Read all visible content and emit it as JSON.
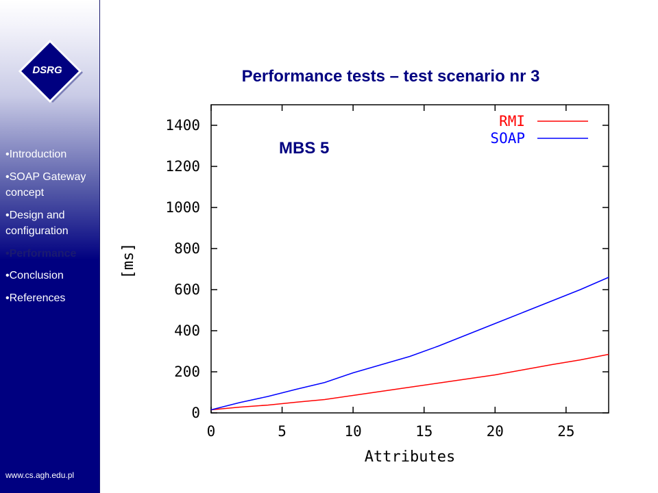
{
  "logo": {
    "text": "DSRG"
  },
  "nav": {
    "items": [
      {
        "label": "Introduction"
      },
      {
        "label": "SOAP Gateway concept"
      },
      {
        "label": "Design and configuration"
      },
      {
        "label": "Performance"
      },
      {
        "label": "Conclusion"
      },
      {
        "label": "References"
      }
    ],
    "active_index": 3
  },
  "footer": {
    "url": "www.cs.agh.edu.pl"
  },
  "slide": {
    "title": "Performance tests – test scenario nr 3"
  },
  "chart_data": {
    "type": "line",
    "annotation": "MBS 5",
    "xlabel": "Attributes",
    "ylabel": "[ms]",
    "xlim": [
      0,
      28
    ],
    "ylim": [
      0,
      1500
    ],
    "x_ticks": [
      0,
      5,
      10,
      15,
      20,
      25
    ],
    "y_ticks": [
      0,
      200,
      400,
      600,
      800,
      1000,
      1200,
      1400
    ],
    "grid": false,
    "legend_position": "top-right",
    "x": [
      0,
      2,
      4,
      6,
      8,
      10,
      12,
      14,
      16,
      18,
      20,
      22,
      24,
      26,
      28
    ],
    "series": [
      {
        "name": "RMI",
        "color": "#ff0000",
        "values": [
          15,
          28,
          38,
          52,
          65,
          85,
          105,
          125,
          145,
          165,
          185,
          210,
          235,
          258,
          285
        ]
      },
      {
        "name": "SOAP",
        "color": "#0000ff",
        "values": [
          15,
          50,
          80,
          115,
          148,
          195,
          235,
          275,
          325,
          380,
          435,
          490,
          545,
          600,
          660
        ]
      }
    ]
  }
}
